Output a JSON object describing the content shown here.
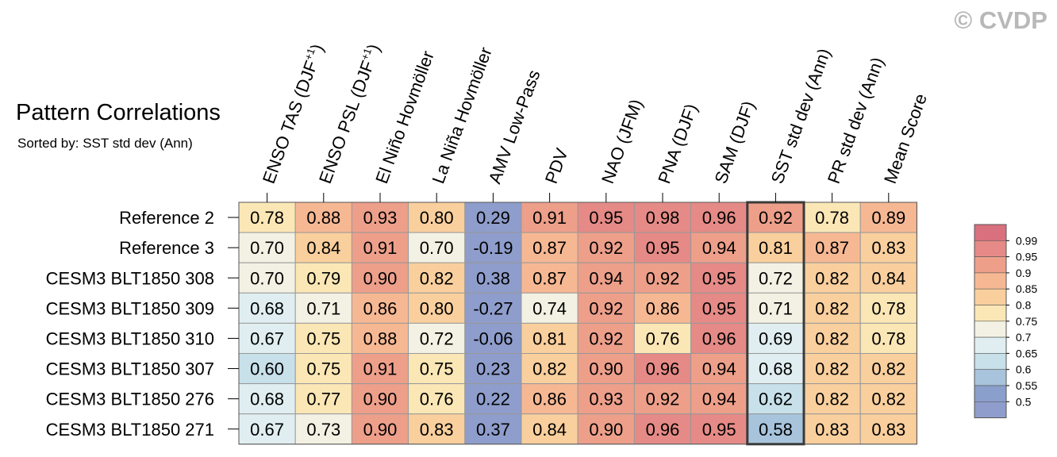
{
  "title": "Pattern Correlations",
  "subtitle": "Sorted by: SST std dev (Ann)",
  "watermark": "© CVDP",
  "chart_data": {
    "type": "heatmap",
    "columns": [
      [
        "ENSO TAS (DJF",
        "+1",
        ")"
      ],
      [
        "ENSO PSL (DJF",
        "+1",
        ")"
      ],
      [
        "El Niño Hovmöller"
      ],
      [
        "La Niña Hovmöller"
      ],
      [
        "AMV Low-Pass"
      ],
      [
        "PDV"
      ],
      [
        "NAO (JFM)"
      ],
      [
        "PNA (DJF)"
      ],
      [
        "SAM (DJF)"
      ],
      [
        "SST std dev (Ann)"
      ],
      [
        "PR std dev (Ann)"
      ],
      [
        "Mean Score"
      ]
    ],
    "sorted_column": 9,
    "rows": [
      {
        "name": "Reference 2",
        "values": [
          "0.78",
          "0.88",
          "0.93",
          "0.80",
          "0.29",
          "0.91",
          "0.95",
          "0.98",
          "0.96",
          "0.92",
          "0.78",
          "0.89"
        ]
      },
      {
        "name": "Reference 3",
        "values": [
          "0.70",
          "0.84",
          "0.91",
          "0.70",
          "-0.19",
          "0.87",
          "0.92",
          "0.95",
          "0.94",
          "0.81",
          "0.87",
          "0.83"
        ]
      },
      {
        "name": "CESM3 BLT1850 308",
        "values": [
          "0.70",
          "0.79",
          "0.90",
          "0.82",
          "0.38",
          "0.87",
          "0.94",
          "0.92",
          "0.95",
          "0.72",
          "0.82",
          "0.84"
        ]
      },
      {
        "name": "CESM3 BLT1850 309",
        "values": [
          "0.68",
          "0.71",
          "0.86",
          "0.80",
          "-0.27",
          "0.74",
          "0.92",
          "0.86",
          "0.95",
          "0.71",
          "0.82",
          "0.78"
        ]
      },
      {
        "name": "CESM3 BLT1850 310",
        "values": [
          "0.67",
          "0.75",
          "0.88",
          "0.72",
          "-0.06",
          "0.81",
          "0.92",
          "0.76",
          "0.96",
          "0.69",
          "0.82",
          "0.78"
        ]
      },
      {
        "name": "CESM3 BLT1850 307",
        "values": [
          "0.60",
          "0.75",
          "0.91",
          "0.75",
          "0.23",
          "0.82",
          "0.90",
          "0.96",
          "0.94",
          "0.68",
          "0.82",
          "0.82"
        ]
      },
      {
        "name": "CESM3 BLT1850 276",
        "values": [
          "0.68",
          "0.77",
          "0.90",
          "0.76",
          "0.22",
          "0.86",
          "0.93",
          "0.92",
          "0.94",
          "0.62",
          "0.82",
          "0.82"
        ]
      },
      {
        "name": "CESM3 BLT1850 271",
        "values": [
          "0.67",
          "0.73",
          "0.90",
          "0.83",
          "0.37",
          "0.84",
          "0.90",
          "0.96",
          "0.95",
          "0.58",
          "0.83",
          "0.83"
        ]
      }
    ],
    "colorbar": {
      "labels": [
        "0.99",
        "0.95",
        "0.9",
        "0.85",
        "0.8",
        "0.75",
        "0.7",
        "0.65",
        "0.6",
        "0.55",
        "0.5"
      ],
      "colors": [
        "#d9707e",
        "#e58a86",
        "#ed9f8a",
        "#f6b893",
        "#f9cf9d",
        "#fbe7b5",
        "#f3f1e3",
        "#e0eef1",
        "#c7e0ea",
        "#a7c4dc",
        "#8b9fcc",
        "#8e9dcb"
      ]
    }
  }
}
